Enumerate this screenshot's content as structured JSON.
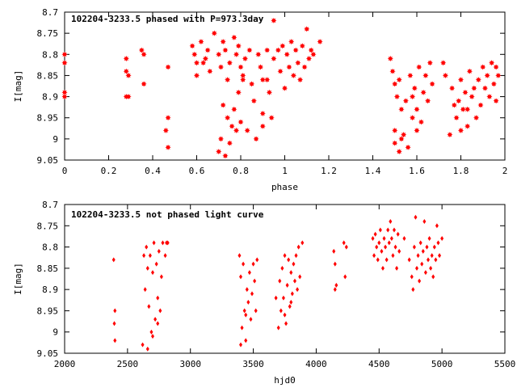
{
  "chart_data": [
    {
      "type": "scatter",
      "title": "102204-3233.5 phased with P=973.3day",
      "xlabel": "phase",
      "ylabel": "I[mag]",
      "xlim": [
        0,
        2
      ],
      "ylim": [
        9.05,
        8.7
      ],
      "y_inverted": true,
      "xticks": [
        "0",
        "0.2",
        "0.4",
        "0.6",
        "0.8",
        "1",
        "1.2",
        "1.4",
        "1.6",
        "1.8",
        "2"
      ],
      "yticks": [
        "8.7",
        "8.75",
        "8.8",
        "8.85",
        "8.9",
        "8.95",
        "9",
        "9.05"
      ],
      "marker": "filled-star",
      "color": "#ff0000",
      "series": [
        {
          "points": [
            [
              0.0,
              8.8
            ],
            [
              0.0,
              8.82
            ],
            [
              0.0,
              8.89
            ],
            [
              0.0,
              8.9
            ],
            [
              0.28,
              8.81
            ],
            [
              0.28,
              8.84
            ],
            [
              0.29,
              8.85
            ],
            [
              0.28,
              8.9
            ],
            [
              0.29,
              8.9
            ],
            [
              0.35,
              8.79
            ],
            [
              0.36,
              8.8
            ],
            [
              0.36,
              8.87
            ],
            [
              0.47,
              8.83
            ],
            [
              0.47,
              8.95
            ],
            [
              0.46,
              8.98
            ],
            [
              0.47,
              9.02
            ],
            [
              0.58,
              8.78
            ],
            [
              0.59,
              8.8
            ],
            [
              0.6,
              8.82
            ],
            [
              0.6,
              8.85
            ],
            [
              0.62,
              8.77
            ],
            [
              0.63,
              8.82
            ],
            [
              0.64,
              8.81
            ],
            [
              0.65,
              8.79
            ],
            [
              0.66,
              8.84
            ],
            [
              0.68,
              8.75
            ],
            [
              0.7,
              8.8
            ],
            [
              0.71,
              8.83
            ],
            [
              0.72,
              8.77
            ],
            [
              0.73,
              8.79
            ],
            [
              0.74,
              8.86
            ],
            [
              0.75,
              8.82
            ],
            [
              0.77,
              8.76
            ],
            [
              0.78,
              8.8
            ],
            [
              0.79,
              8.78
            ],
            [
              0.8,
              8.83
            ],
            [
              0.81,
              8.85
            ],
            [
              0.82,
              8.81
            ],
            [
              0.84,
              8.79
            ],
            [
              0.85,
              8.87
            ],
            [
              0.7,
              9.03
            ],
            [
              0.71,
              9.0
            ],
            [
              0.72,
              8.92
            ],
            [
              0.73,
              9.04
            ],
            [
              0.74,
              8.95
            ],
            [
              0.75,
              9.01
            ],
            [
              0.76,
              8.97
            ],
            [
              0.77,
              8.93
            ],
            [
              0.78,
              8.98
            ],
            [
              0.79,
              8.89
            ],
            [
              0.8,
              8.96
            ],
            [
              0.81,
              8.86
            ],
            [
              0.83,
              8.98
            ],
            [
              0.87,
              9.0
            ],
            [
              0.86,
              8.91
            ],
            [
              0.88,
              8.8
            ],
            [
              0.89,
              8.83
            ],
            [
              0.9,
              8.86
            ],
            [
              0.92,
              8.79
            ],
            [
              0.93,
              8.89
            ],
            [
              0.94,
              8.95
            ],
            [
              0.95,
              8.81
            ],
            [
              0.97,
              8.79
            ],
            [
              0.98,
              8.84
            ],
            [
              0.99,
              8.78
            ],
            [
              1.0,
              8.88
            ],
            [
              1.01,
              8.8
            ],
            [
              1.02,
              8.83
            ],
            [
              1.03,
              8.77
            ],
            [
              1.04,
              8.85
            ],
            [
              1.05,
              8.79
            ],
            [
              1.06,
              8.82
            ],
            [
              1.07,
              8.86
            ],
            [
              1.08,
              8.78
            ],
            [
              1.09,
              8.83
            ],
            [
              1.1,
              8.74
            ],
            [
              1.11,
              8.81
            ],
            [
              1.12,
              8.79
            ],
            [
              1.13,
              8.8
            ],
            [
              1.16,
              8.77
            ],
            [
              0.95,
              8.72
            ],
            [
              0.92,
              8.86
            ],
            [
              0.9,
              8.94
            ],
            [
              0.9,
              8.97
            ],
            [
              1.48,
              8.81
            ],
            [
              1.49,
              8.84
            ],
            [
              1.5,
              8.87
            ],
            [
              1.5,
              8.98
            ],
            [
              1.51,
              8.9
            ],
            [
              1.52,
              9.03
            ],
            [
              1.52,
              8.86
            ],
            [
              1.53,
              8.93
            ],
            [
              1.54,
              8.99
            ],
            [
              1.55,
              8.91
            ],
            [
              1.56,
              9.02
            ],
            [
              1.57,
              8.85
            ],
            [
              1.58,
              8.95
            ],
            [
              1.59,
              8.88
            ],
            [
              1.6,
              8.93
            ],
            [
              1.61,
              8.83
            ],
            [
              1.62,
              8.96
            ],
            [
              1.63,
              8.89
            ],
            [
              1.64,
              8.85
            ],
            [
              1.65,
              8.91
            ],
            [
              1.66,
              8.82
            ],
            [
              1.67,
              8.87
            ],
            [
              1.5,
              9.01
            ],
            [
              1.53,
              9.0
            ],
            [
              1.58,
              8.9
            ],
            [
              1.6,
              8.98
            ],
            [
              1.72,
              8.82
            ],
            [
              1.73,
              8.85
            ],
            [
              1.75,
              8.99
            ],
            [
              1.76,
              8.88
            ],
            [
              1.77,
              8.92
            ],
            [
              1.78,
              8.95
            ],
            [
              1.79,
              8.91
            ],
            [
              1.8,
              8.86
            ],
            [
              1.81,
              8.93
            ],
            [
              1.82,
              8.89
            ],
            [
              1.83,
              8.97
            ],
            [
              1.84,
              8.84
            ],
            [
              1.85,
              8.9
            ],
            [
              1.86,
              8.88
            ],
            [
              1.87,
              8.95
            ],
            [
              1.88,
              8.86
            ],
            [
              1.89,
              8.92
            ],
            [
              1.9,
              8.83
            ],
            [
              1.91,
              8.88
            ],
            [
              1.92,
              8.85
            ],
            [
              1.93,
              8.9
            ],
            [
              1.94,
              8.82
            ],
            [
              1.95,
              8.87
            ],
            [
              1.96,
              8.83
            ],
            [
              1.97,
              8.85
            ],
            [
              1.96,
              8.91
            ],
            [
              1.8,
              8.98
            ],
            [
              1.83,
              8.93
            ]
          ]
        }
      ]
    },
    {
      "type": "scatter",
      "title": "102204-3233.5 not phased light curve",
      "xlabel": "hjd0",
      "ylabel": "I[mag]",
      "xlim": [
        2000,
        5500
      ],
      "ylim": [
        9.05,
        8.7
      ],
      "y_inverted": true,
      "xticks": [
        "2000",
        "2500",
        "3000",
        "3500",
        "4000",
        "4500",
        "5000",
        "5500"
      ],
      "yticks": [
        "8.7",
        "8.75",
        "8.8",
        "8.85",
        "8.9",
        "8.95",
        "9",
        "9.05"
      ],
      "marker": "diamond",
      "color": "#ff0000",
      "series": [
        {
          "points": [
            [
              2390,
              8.83
            ],
            [
              2400,
              8.95
            ],
            [
              2395,
              8.98
            ],
            [
              2400,
              9.02
            ],
            [
              2620,
              9.03
            ],
            [
              2630,
              8.82
            ],
            [
              2640,
              8.9
            ],
            [
              2650,
              8.8
            ],
            [
              2660,
              8.85
            ],
            [
              2670,
              8.94
            ],
            [
              2680,
              8.82
            ],
            [
              2690,
              9.0
            ],
            [
              2700,
              8.86
            ],
            [
              2710,
              8.79
            ],
            [
              2720,
              8.97
            ],
            [
              2730,
              8.84
            ],
            [
              2740,
              8.92
            ],
            [
              2750,
              8.81
            ],
            [
              2760,
              8.95
            ],
            [
              2770,
              8.87
            ],
            [
              2780,
              8.79
            ],
            [
              2800,
              8.82
            ],
            [
              2810,
              8.79
            ],
            [
              2820,
              8.79
            ],
            [
              2660,
              9.04
            ],
            [
              2700,
              9.01
            ],
            [
              2740,
              8.98
            ],
            [
              3390,
              8.82
            ],
            [
              3400,
              8.87
            ],
            [
              3410,
              8.99
            ],
            [
              3420,
              8.84
            ],
            [
              3430,
              8.95
            ],
            [
              3440,
              9.02
            ],
            [
              3450,
              8.9
            ],
            [
              3460,
              8.93
            ],
            [
              3470,
              8.86
            ],
            [
              3480,
              8.97
            ],
            [
              3490,
              8.91
            ],
            [
              3500,
              8.84
            ],
            [
              3510,
              8.88
            ],
            [
              3520,
              8.95
            ],
            [
              3530,
              8.83
            ],
            [
              3400,
              9.03
            ],
            [
              3440,
              8.96
            ],
            [
              3680,
              8.92
            ],
            [
              3700,
              8.99
            ],
            [
              3710,
              8.88
            ],
            [
              3720,
              8.95
            ],
            [
              3730,
              8.85
            ],
            [
              3740,
              8.92
            ],
            [
              3750,
              8.82
            ],
            [
              3760,
              8.98
            ],
            [
              3770,
              8.89
            ],
            [
              3780,
              8.83
            ],
            [
              3790,
              8.94
            ],
            [
              3800,
              8.86
            ],
            [
              3810,
              8.91
            ],
            [
              3820,
              8.84
            ],
            [
              3830,
              8.88
            ],
            [
              3840,
              8.82
            ],
            [
              3850,
              8.9
            ],
            [
              3860,
              8.8
            ],
            [
              3870,
              8.87
            ],
            [
              3890,
              8.79
            ],
            [
              3750,
              8.96
            ],
            [
              3800,
              8.93
            ],
            [
              4140,
              8.81
            ],
            [
              4150,
              8.84
            ],
            [
              4160,
              8.89
            ],
            [
              4150,
              8.9
            ],
            [
              4220,
              8.79
            ],
            [
              4230,
              8.87
            ],
            [
              4240,
              8.8
            ],
            [
              4450,
              8.78
            ],
            [
              4460,
              8.82
            ],
            [
              4470,
              8.77
            ],
            [
              4480,
              8.8
            ],
            [
              4490,
              8.83
            ],
            [
              4500,
              8.79
            ],
            [
              4510,
              8.76
            ],
            [
              4520,
              8.81
            ],
            [
              4530,
              8.85
            ],
            [
              4540,
              8.78
            ],
            [
              4550,
              8.8
            ],
            [
              4560,
              8.83
            ],
            [
              4570,
              8.76
            ],
            [
              4580,
              8.79
            ],
            [
              4590,
              8.74
            ],
            [
              4600,
              8.78
            ],
            [
              4610,
              8.82
            ],
            [
              4620,
              8.76
            ],
            [
              4630,
              8.8
            ],
            [
              4640,
              8.85
            ],
            [
              4650,
              8.77
            ],
            [
              4660,
              8.81
            ],
            [
              4700,
              8.78
            ],
            [
              4740,
              8.83
            ],
            [
              4760,
              8.87
            ],
            [
              4770,
              8.9
            ],
            [
              4780,
              8.8
            ],
            [
              4790,
              8.73
            ],
            [
              4800,
              8.85
            ],
            [
              4810,
              8.82
            ],
            [
              4820,
              8.88
            ],
            [
              4830,
              8.79
            ],
            [
              4840,
              8.84
            ],
            [
              4850,
              8.81
            ],
            [
              4860,
              8.74
            ],
            [
              4870,
              8.86
            ],
            [
              4880,
              8.8
            ],
            [
              4890,
              8.83
            ],
            [
              4900,
              8.78
            ],
            [
              4910,
              8.85
            ],
            [
              4920,
              8.82
            ],
            [
              4930,
              8.87
            ],
            [
              4940,
              8.8
            ],
            [
              4950,
              8.83
            ],
            [
              4960,
              8.75
            ],
            [
              4970,
              8.79
            ],
            [
              4980,
              8.82
            ],
            [
              5000,
              8.78
            ]
          ]
        }
      ]
    }
  ]
}
